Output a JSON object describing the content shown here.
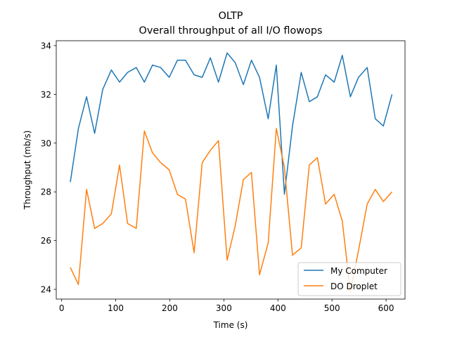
{
  "chart_data": {
    "type": "line",
    "title": "OLTP",
    "subtitle": "Overall throughput of all I/O flowops",
    "xlabel": "Time (s)",
    "ylabel": "Throughput (mb/s)",
    "xlim": [
      -10,
      635
    ],
    "ylim": [
      23.6,
      34.2
    ],
    "xticks": [
      0,
      100,
      200,
      300,
      400,
      500,
      600
    ],
    "yticks": [
      24,
      26,
      28,
      30,
      32,
      34
    ],
    "grid": false,
    "legend_position": "lower right",
    "x": [
      16,
      31,
      46,
      61,
      76,
      92,
      107,
      122,
      138,
      153,
      168,
      183,
      199,
      214,
      229,
      245,
      260,
      275,
      290,
      306,
      321,
      336,
      351,
      366,
      382,
      397,
      412,
      427,
      443,
      458,
      473,
      488,
      504,
      519,
      534,
      549,
      565,
      580,
      595,
      611
    ],
    "series": [
      {
        "name": "My Computer",
        "color": "#1f77b4",
        "values": [
          28.4,
          30.6,
          31.9,
          30.4,
          32.2,
          33.0,
          32.5,
          32.9,
          33.1,
          32.5,
          33.2,
          33.1,
          32.7,
          33.4,
          33.4,
          32.8,
          32.7,
          33.5,
          32.5,
          33.7,
          33.3,
          32.4,
          33.4,
          32.7,
          31.0,
          33.2,
          27.9,
          30.7,
          32.9,
          31.7,
          31.9,
          32.8,
          32.5,
          33.6,
          31.9,
          32.7,
          33.1,
          31.0,
          30.7,
          32.0
        ]
      },
      {
        "name": "DO Droplet",
        "color": "#ff7f0e",
        "values": [
          24.9,
          24.2,
          28.1,
          26.5,
          26.7,
          27.1,
          29.1,
          26.7,
          26.5,
          30.5,
          29.6,
          29.2,
          28.9,
          27.9,
          27.7,
          25.5,
          29.2,
          29.7,
          30.1,
          25.2,
          26.6,
          28.5,
          28.8,
          24.6,
          25.9,
          30.6,
          29.0,
          25.4,
          25.7,
          29.1,
          29.4,
          27.5,
          27.9,
          26.8,
          23.9,
          25.6,
          27.5,
          28.1,
          27.6,
          28.0
        ]
      }
    ]
  }
}
